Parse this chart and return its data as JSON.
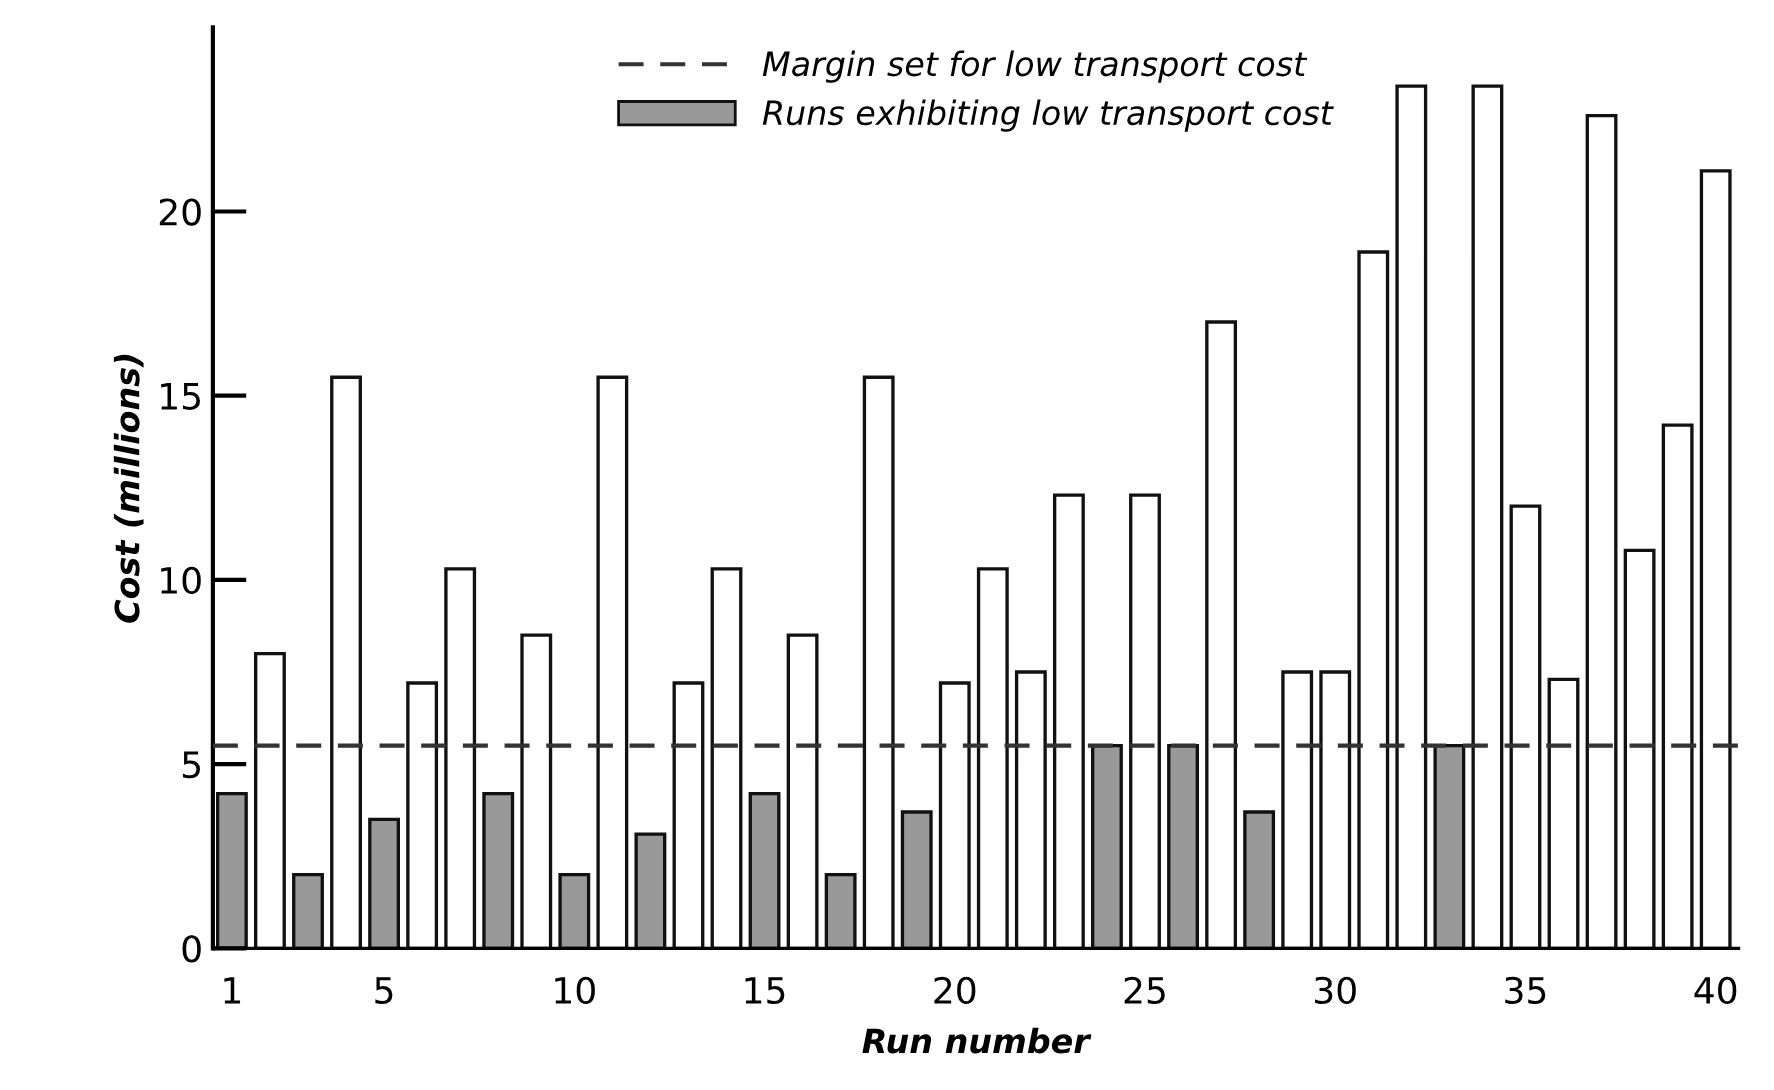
{
  "chart_data": {
    "type": "bar",
    "xlabel": "Run number",
    "ylabel": "Cost (millions)",
    "x": [
      1,
      2,
      3,
      4,
      5,
      6,
      7,
      8,
      9,
      10,
      11,
      12,
      13,
      14,
      15,
      16,
      17,
      18,
      19,
      20,
      21,
      22,
      23,
      24,
      25,
      26,
      27,
      28,
      29,
      30,
      31,
      32,
      33,
      34,
      35,
      36,
      37,
      38,
      39,
      40
    ],
    "series": [
      {
        "color": "#ffffff",
        "values": [
          null,
          8.0,
          null,
          15.5,
          null,
          7.2,
          10.3,
          null,
          8.5,
          null,
          15.5,
          null,
          7.2,
          10.3,
          null,
          8.5,
          null,
          15.5,
          null,
          7.2,
          10.3,
          7.5,
          12.3,
          null,
          12.3,
          null,
          17.0,
          null,
          7.5,
          7.5,
          18.9,
          23.4,
          null,
          23.4,
          12.0,
          7.3,
          22.6,
          10.8,
          14.2,
          21.1
        ]
      },
      {
        "name": "Runs exhibiting low transport cost",
        "color": "#999999",
        "values": [
          4.2,
          null,
          2.0,
          null,
          3.5,
          null,
          null,
          4.2,
          null,
          2.0,
          null,
          3.1,
          null,
          null,
          4.2,
          null,
          2.0,
          null,
          3.7,
          null,
          null,
          null,
          null,
          5.5,
          null,
          5.5,
          null,
          3.7,
          null,
          null,
          null,
          null,
          5.5,
          null,
          null,
          null,
          null,
          null,
          null,
          null
        ]
      }
    ],
    "ref_lines": [
      {
        "axis": "y",
        "value": 5.5,
        "label": "Margin set for low transport cost",
        "color": "#333333",
        "line_style": "dashed"
      }
    ],
    "xlim": [
      0.5,
      40.6
    ],
    "xticks": [
      1,
      5,
      10,
      15,
      20,
      25,
      30,
      35,
      40
    ],
    "ylim": [
      0,
      25
    ],
    "yticks": [
      0,
      5,
      10,
      15,
      20
    ],
    "grid": false,
    "legend": "top"
  }
}
